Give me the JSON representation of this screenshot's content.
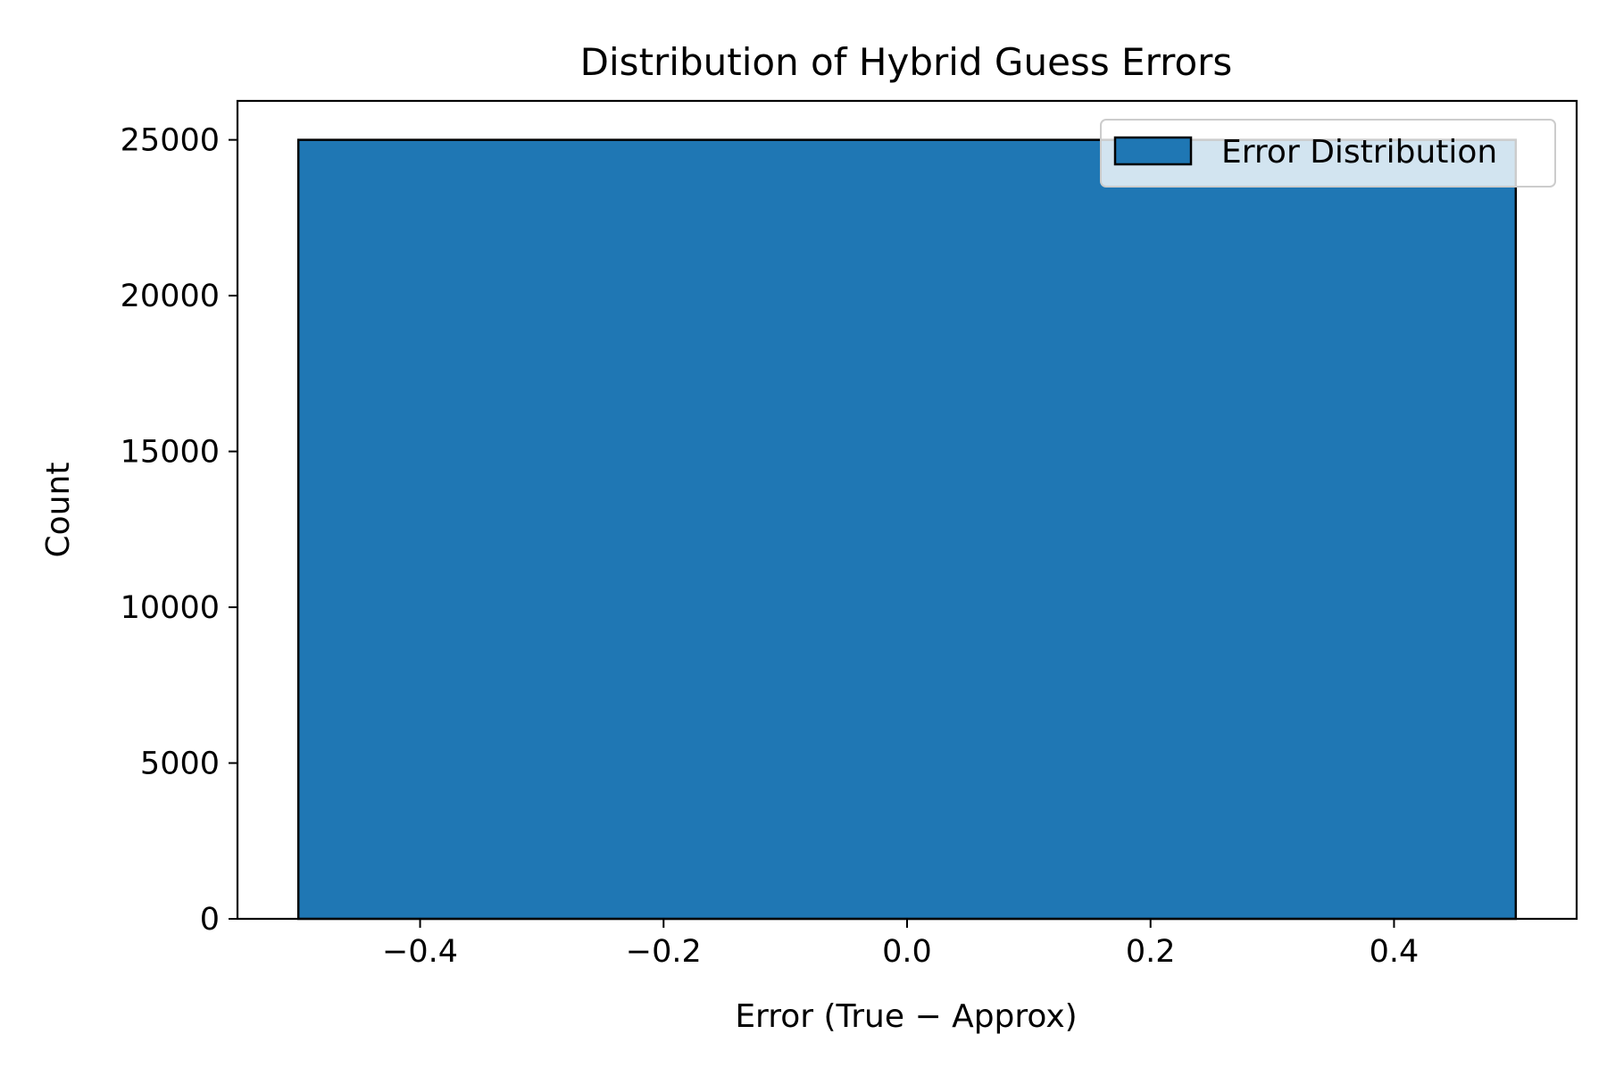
{
  "chart_data": {
    "type": "bar",
    "title": "Distribution of Hybrid Guess Errors",
    "xlabel": "Error (True − Approx)",
    "ylabel": "Count",
    "xlim": [
      -0.55,
      0.55
    ],
    "ylim": [
      0,
      26250
    ],
    "xticks": [
      -0.4,
      -0.2,
      0.0,
      0.2,
      0.4
    ],
    "xtick_labels": [
      "−0.4",
      "−0.2",
      "0.0",
      "0.2",
      "0.4"
    ],
    "yticks": [
      0,
      5000,
      10000,
      15000,
      20000,
      25000
    ],
    "ytick_labels": [
      "0",
      "5000",
      "10000",
      "15000",
      "20000",
      "25000"
    ],
    "bins": [
      {
        "x_start": -0.5,
        "x_end": 0.5,
        "count": 25000
      }
    ],
    "series": [
      {
        "name": "Error Distribution",
        "color": "#1f77b4"
      }
    ],
    "legend_position": "top-right",
    "grid": false
  }
}
